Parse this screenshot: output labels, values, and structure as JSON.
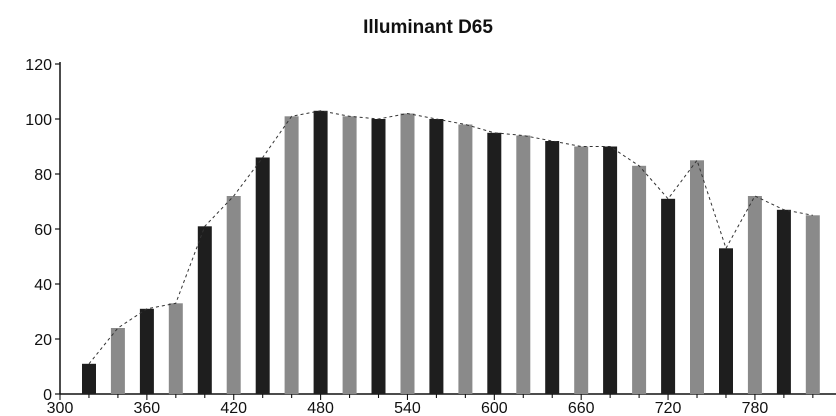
{
  "chart_data": {
    "type": "bar",
    "title": "Illuminant D65",
    "xlabel": "",
    "ylabel": "",
    "x": [
      320,
      340,
      360,
      380,
      400,
      420,
      440,
      460,
      480,
      500,
      520,
      540,
      560,
      580,
      600,
      620,
      640,
      660,
      680,
      700,
      720,
      740,
      760,
      780,
      800,
      820
    ],
    "values": [
      11,
      24,
      31,
      33,
      61,
      72,
      86,
      101,
      103,
      101,
      100,
      102,
      100,
      98,
      95,
      94,
      92,
      90,
      90,
      83,
      71,
      85,
      53,
      72,
      67,
      65
    ],
    "xlim": [
      300,
      836
    ],
    "ylim": [
      0,
      120
    ],
    "x_ticks": [
      300,
      360,
      420,
      480,
      540,
      600,
      660,
      720,
      780
    ],
    "y_ticks": [
      0,
      20,
      40,
      60,
      80,
      100,
      120
    ],
    "grid": false,
    "connecting_line": true,
    "bar_colors": [
      "#1e1e1e",
      "#8a8a8a"
    ]
  }
}
